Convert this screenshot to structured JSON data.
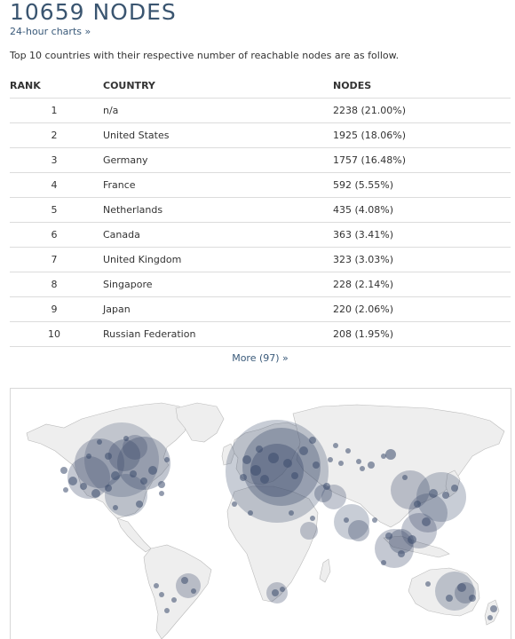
{
  "header": {
    "title": "10659 NODES",
    "charts_link": "24-hour charts »"
  },
  "intro": "Top 10 countries with their respective number of reachable nodes are as follow.",
  "table": {
    "columns": [
      "RANK",
      "COUNTRY",
      "NODES"
    ],
    "rows": [
      {
        "rank": "1",
        "country": "n/a",
        "nodes": "2238 (21.00%)"
      },
      {
        "rank": "2",
        "country": "United States",
        "nodes": "1925 (18.06%)"
      },
      {
        "rank": "3",
        "country": "Germany",
        "nodes": "1757 (16.48%)"
      },
      {
        "rank": "4",
        "country": "France",
        "nodes": "592 (5.55%)"
      },
      {
        "rank": "5",
        "country": "Netherlands",
        "nodes": "435 (4.08%)"
      },
      {
        "rank": "6",
        "country": "Canada",
        "nodes": "363 (3.41%)"
      },
      {
        "rank": "7",
        "country": "United Kingdom",
        "nodes": "323 (3.03%)"
      },
      {
        "rank": "8",
        "country": "Singapore",
        "nodes": "228 (2.14%)"
      },
      {
        "rank": "9",
        "country": "Japan",
        "nodes": "220 (2.06%)"
      },
      {
        "rank": "10",
        "country": "Russian Federation",
        "nodes": "208 (1.95%)"
      }
    ]
  },
  "more_link": "More (97) »",
  "map": {
    "land_color": "#eeeeee",
    "border_color": "#bbbbbb",
    "bubble_color": "#3b4a6b"
  }
}
